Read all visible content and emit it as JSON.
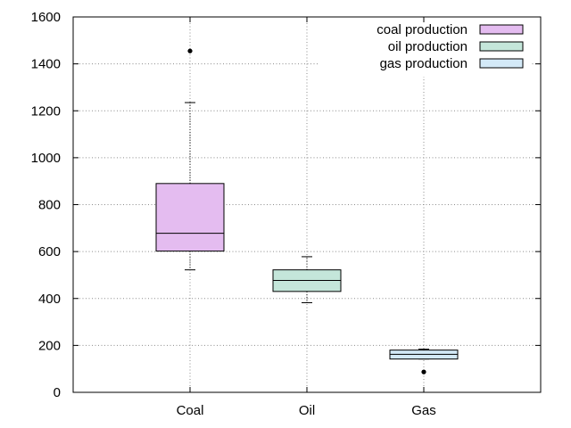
{
  "chart_data": {
    "type": "boxplot",
    "categories": [
      "Coal",
      "Oil",
      "Gas"
    ],
    "ylim": [
      0,
      1600
    ],
    "yticks": [
      0,
      200,
      400,
      600,
      800,
      1000,
      1200,
      1400,
      1600
    ],
    "grid": true,
    "legend_position": "top-right",
    "series": [
      {
        "name": "coal production",
        "category": "Coal",
        "color": "#e4bcf0",
        "min": 522,
        "q1": 602,
        "median": 678,
        "q3": 890,
        "max": 1235,
        "outliers": [
          1455
        ]
      },
      {
        "name": "oil production",
        "category": "Oil",
        "color": "#c4e6da",
        "min": 382,
        "q1": 430,
        "median": 477,
        "q3": 522,
        "max": 578,
        "outliers": []
      },
      {
        "name": "gas production",
        "category": "Gas",
        "color": "#d3e9f7",
        "min": 142,
        "q1": 142,
        "median": 162,
        "q3": 180,
        "max": 184,
        "outliers": [
          87
        ]
      }
    ]
  }
}
